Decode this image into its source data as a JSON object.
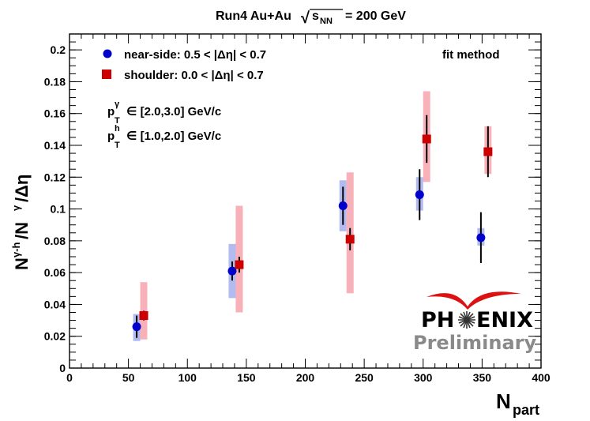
{
  "chart_data": {
    "type": "scatter",
    "title": {
      "prefix": "Run4 Au+Au",
      "sqrt_symbol": "√",
      "var": "s",
      "var_sub": "NN",
      "suffix": "= 200 GeV"
    },
    "xlabel": {
      "main": "N",
      "sub": "part"
    },
    "ylabel": {
      "main": "N",
      "sup1": "γ-h",
      "mid": "/N",
      "sup2": "γ",
      "tail": "/Δη"
    },
    "xlim": [
      0,
      400
    ],
    "ylim": [
      0,
      0.21
    ],
    "x_ticks": [
      "0",
      "50",
      "100",
      "150",
      "200",
      "250",
      "300",
      "350",
      "400"
    ],
    "y_ticks": [
      "0",
      "0.02",
      "0.04",
      "0.06",
      "0.08",
      "0.1",
      "0.12",
      "0.14",
      "0.16",
      "0.18",
      "0.2"
    ],
    "method_label": "fit method",
    "series": [
      {
        "name": "near-side",
        "legend": "near-side: 0.5 < |Δη| < 0.7",
        "marker": "circle",
        "color": "#0000cc",
        "band_color": "#a8b4ee",
        "x": [
          57,
          138,
          232,
          297,
          349
        ],
        "y": [
          0.026,
          0.061,
          0.102,
          0.109,
          0.082
        ],
        "stat_err": [
          0.007,
          0.006,
          0.012,
          0.016,
          0.016
        ],
        "sys_low": [
          0.009,
          0.017,
          0.016,
          0.01,
          0.005
        ],
        "sys_high": [
          0.008,
          0.017,
          0.016,
          0.011,
          0.006
        ]
      },
      {
        "name": "shoulder",
        "legend": "shoulder: 0.0 < |Δη| < 0.7",
        "marker": "square",
        "color": "#cc0000",
        "band_color": "#f7a8b0",
        "x": [
          63,
          144,
          238,
          303,
          355
        ],
        "y": [
          0.033,
          0.065,
          0.081,
          0.144,
          0.136
        ],
        "stat_err": [
          0.003,
          0.005,
          0.007,
          0.015,
          0.016
        ],
        "sys_low": [
          0.015,
          0.03,
          0.034,
          0.027,
          0.014
        ],
        "sys_high": [
          0.021,
          0.037,
          0.042,
          0.03,
          0.016
        ]
      }
    ],
    "annotations": [
      {
        "main": "p",
        "sub": "T",
        "sup": "γ",
        "text": "∈ [2.0,3.0] GeV/c"
      },
      {
        "main": "p",
        "sub": "T",
        "sup": "h",
        "text": "∈ [1.0,2.0] GeV/c"
      }
    ]
  },
  "logo": {
    "text_left": "PH",
    "text_right": "ENIX",
    "sub": "Preliminary"
  }
}
